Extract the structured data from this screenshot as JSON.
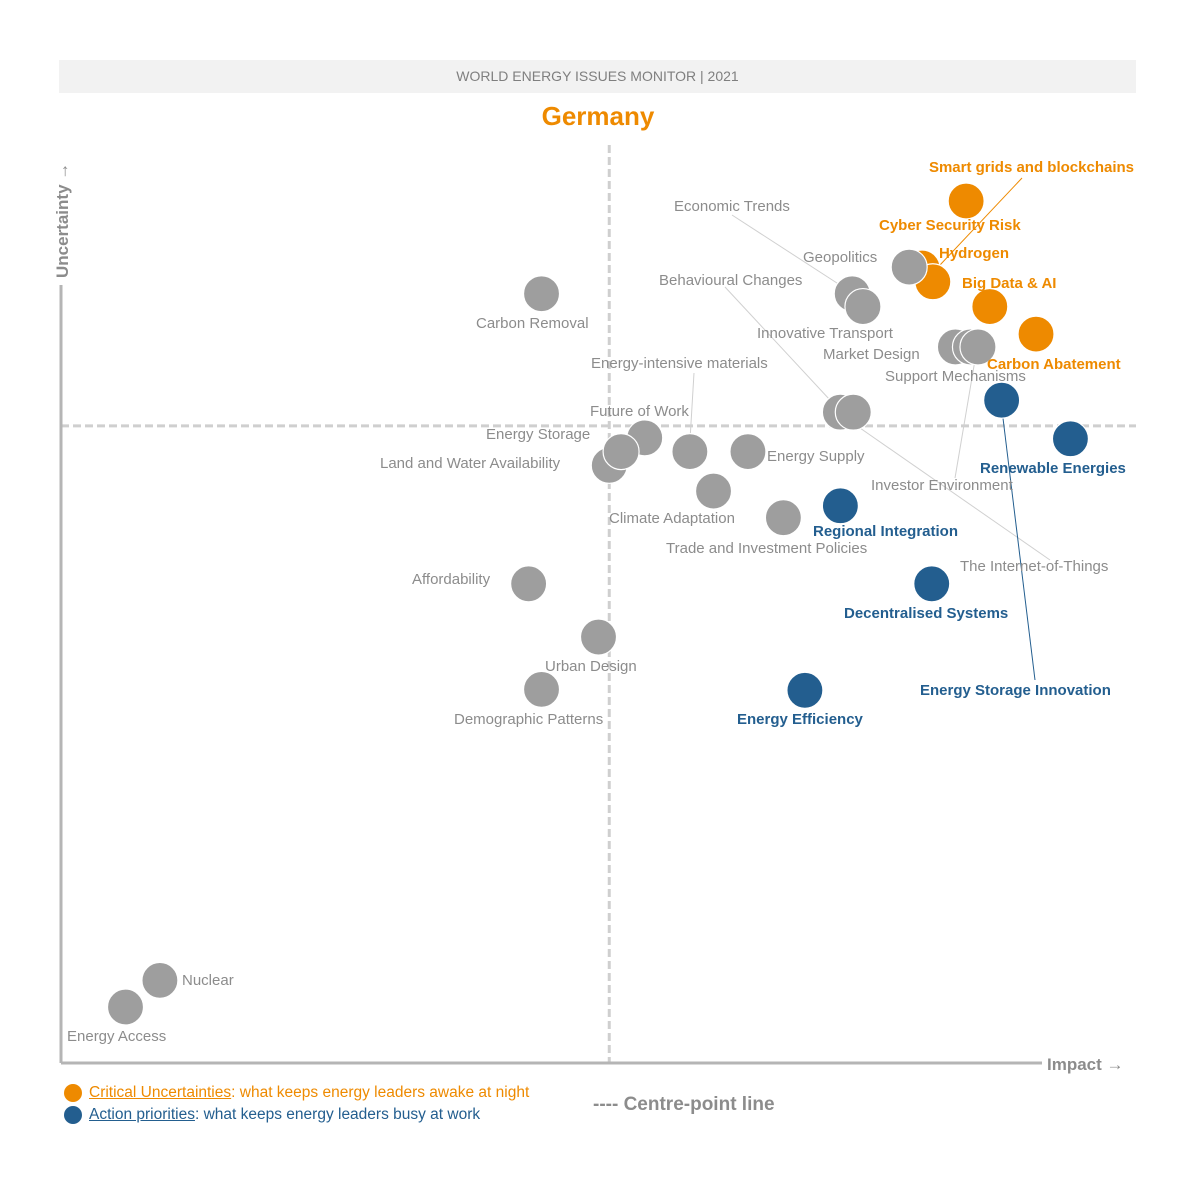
{
  "header": {
    "banner": "WORLD ENERGY ISSUES MONITOR | 2021",
    "title": "Germany"
  },
  "colors": {
    "critical": "#EE8A00",
    "action": "#235E8F",
    "other": "#9E9E9E",
    "other_label": "#8C8C8C"
  },
  "legend": {
    "critical_term": "Critical Uncertainties",
    "critical_desc": ": what keeps energy leaders awake at night",
    "action_term": "Action priorities",
    "action_desc": ": what keeps energy leaders busy at work",
    "centre_line": "---- Centre-point line"
  },
  "chart_data": {
    "type": "scatter",
    "title": "Germany",
    "xlabel": "Impact →",
    "ylabel": "Uncertainty →",
    "xlim": [
      0,
      10
    ],
    "ylim": [
      0,
      10
    ],
    "centre_point": {
      "impact": 5.1,
      "uncertainty": 6.94
    },
    "grid": false,
    "legend_position": "bottom-left",
    "points": [
      {
        "name": "Smart grids and blockchains",
        "category": "critical",
        "impact": 8.42,
        "uncertainty": 9.39
      },
      {
        "name": "Cyber Security Risk",
        "category": "critical",
        "impact": 8.01,
        "uncertainty": 8.66
      },
      {
        "name": "Hydrogen",
        "category": "critical",
        "impact": 8.11,
        "uncertainty": 8.51
      },
      {
        "name": "Big Data & AI",
        "category": "critical",
        "impact": 8.64,
        "uncertainty": 8.24
      },
      {
        "name": "Carbon Abatement",
        "category": "critical",
        "impact": 9.07,
        "uncertainty": 7.94
      },
      {
        "name": "Carbon Removal",
        "category": "other",
        "impact": 4.47,
        "uncertainty": 8.38
      },
      {
        "name": "Geopolitics",
        "category": "other",
        "impact": 7.89,
        "uncertainty": 8.67
      },
      {
        "name": "Economic Trends",
        "category": "other",
        "impact": 7.36,
        "uncertainty": 8.38
      },
      {
        "name": "Innovative Transport",
        "category": "other",
        "impact": 7.46,
        "uncertainty": 8.24
      },
      {
        "name": "Market Design",
        "category": "other",
        "impact": 8.32,
        "uncertainty": 7.8
      },
      {
        "name": "Support Mechanisms",
        "category": "other",
        "impact": 8.46,
        "uncertainty": 7.8
      },
      {
        "name": "Investor Environment",
        "category": "other",
        "impact": 8.53,
        "uncertainty": 7.8
      },
      {
        "name": "Behavioural Changes",
        "category": "other",
        "impact": 7.25,
        "uncertainty": 7.09
      },
      {
        "name": "The Internet-of-Things",
        "category": "other",
        "impact": 7.37,
        "uncertainty": 7.09
      },
      {
        "name": "Future of Work",
        "category": "other",
        "impact": 5.43,
        "uncertainty": 6.81
      },
      {
        "name": "Land and Water Availability",
        "category": "other",
        "impact": 5.1,
        "uncertainty": 6.51
      },
      {
        "name": "Energy Storage",
        "category": "other",
        "impact": 5.21,
        "uncertainty": 6.66
      },
      {
        "name": "Energy-intensive materials",
        "category": "other",
        "impact": 5.85,
        "uncertainty": 6.66
      },
      {
        "name": "Energy Supply",
        "category": "other",
        "impact": 6.39,
        "uncertainty": 6.66
      },
      {
        "name": "Climate Adaptation",
        "category": "other",
        "impact": 6.07,
        "uncertainty": 6.23
      },
      {
        "name": "Trade and Investment Policies",
        "category": "other",
        "impact": 6.72,
        "uncertainty": 5.94
      },
      {
        "name": "Affordability",
        "category": "other",
        "impact": 4.35,
        "uncertainty": 5.22
      },
      {
        "name": "Urban Design",
        "category": "other",
        "impact": 5.0,
        "uncertainty": 4.64
      },
      {
        "name": "Demographic Patterns",
        "category": "other",
        "impact": 4.47,
        "uncertainty": 4.07
      },
      {
        "name": "Nuclear",
        "category": "other",
        "impact": 0.92,
        "uncertainty": 0.9
      },
      {
        "name": "Energy Access",
        "category": "other",
        "impact": 0.6,
        "uncertainty": 0.61
      },
      {
        "name": "Energy Storage Innovation",
        "category": "action",
        "impact": 8.75,
        "uncertainty": 7.22
      },
      {
        "name": "Renewable Energies",
        "category": "action",
        "impact": 9.39,
        "uncertainty": 6.8
      },
      {
        "name": "Regional Integration",
        "category": "action",
        "impact": 7.25,
        "uncertainty": 6.07
      },
      {
        "name": "Decentralised Systems",
        "category": "action",
        "impact": 8.1,
        "uncertainty": 5.22
      },
      {
        "name": "Energy Efficiency",
        "category": "action",
        "impact": 6.92,
        "uncertainty": 4.06
      }
    ]
  }
}
